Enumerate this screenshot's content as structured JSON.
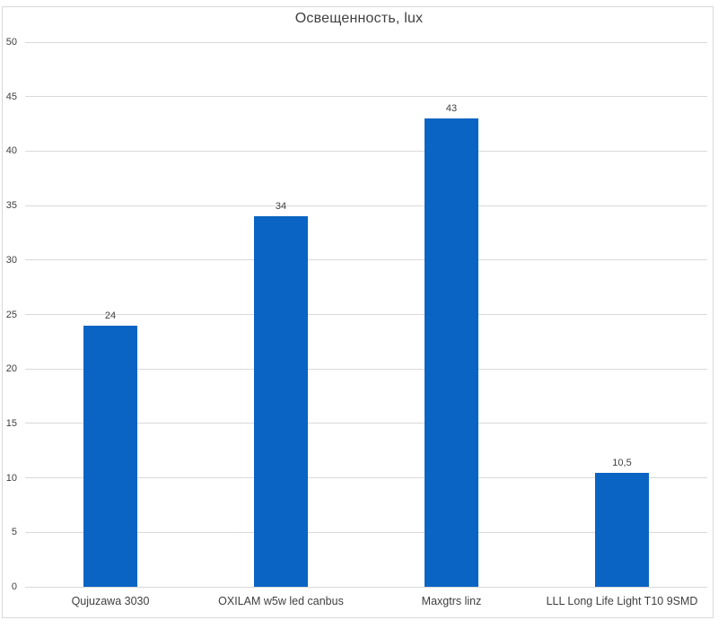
{
  "chart_data": {
    "type": "bar",
    "title": "Освещенность, lux",
    "categories": [
      "Qujuzawa 3030",
      "OXILAM w5w led canbus",
      "Maxgtrs linz",
      "LLL Long Life Light T10 9SMD"
    ],
    "values": [
      24,
      34,
      43,
      10.5
    ],
    "value_labels": [
      "24",
      "34",
      "43",
      "10,5"
    ],
    "xlabel": "",
    "ylabel": "",
    "ylim": [
      0,
      50
    ],
    "ytick_step": 5,
    "ytick_labels": [
      "0",
      "5",
      "10",
      "15",
      "20",
      "25",
      "30",
      "35",
      "40",
      "45",
      "50"
    ],
    "grid": true,
    "legend": false,
    "colors": {
      "bar": "#0A64C3",
      "gridline": "#D9D9D9",
      "frame_border": "#D9D9D9",
      "title_text": "#404040",
      "axis_text": "#404040",
      "background": "#FFFFFF"
    }
  }
}
